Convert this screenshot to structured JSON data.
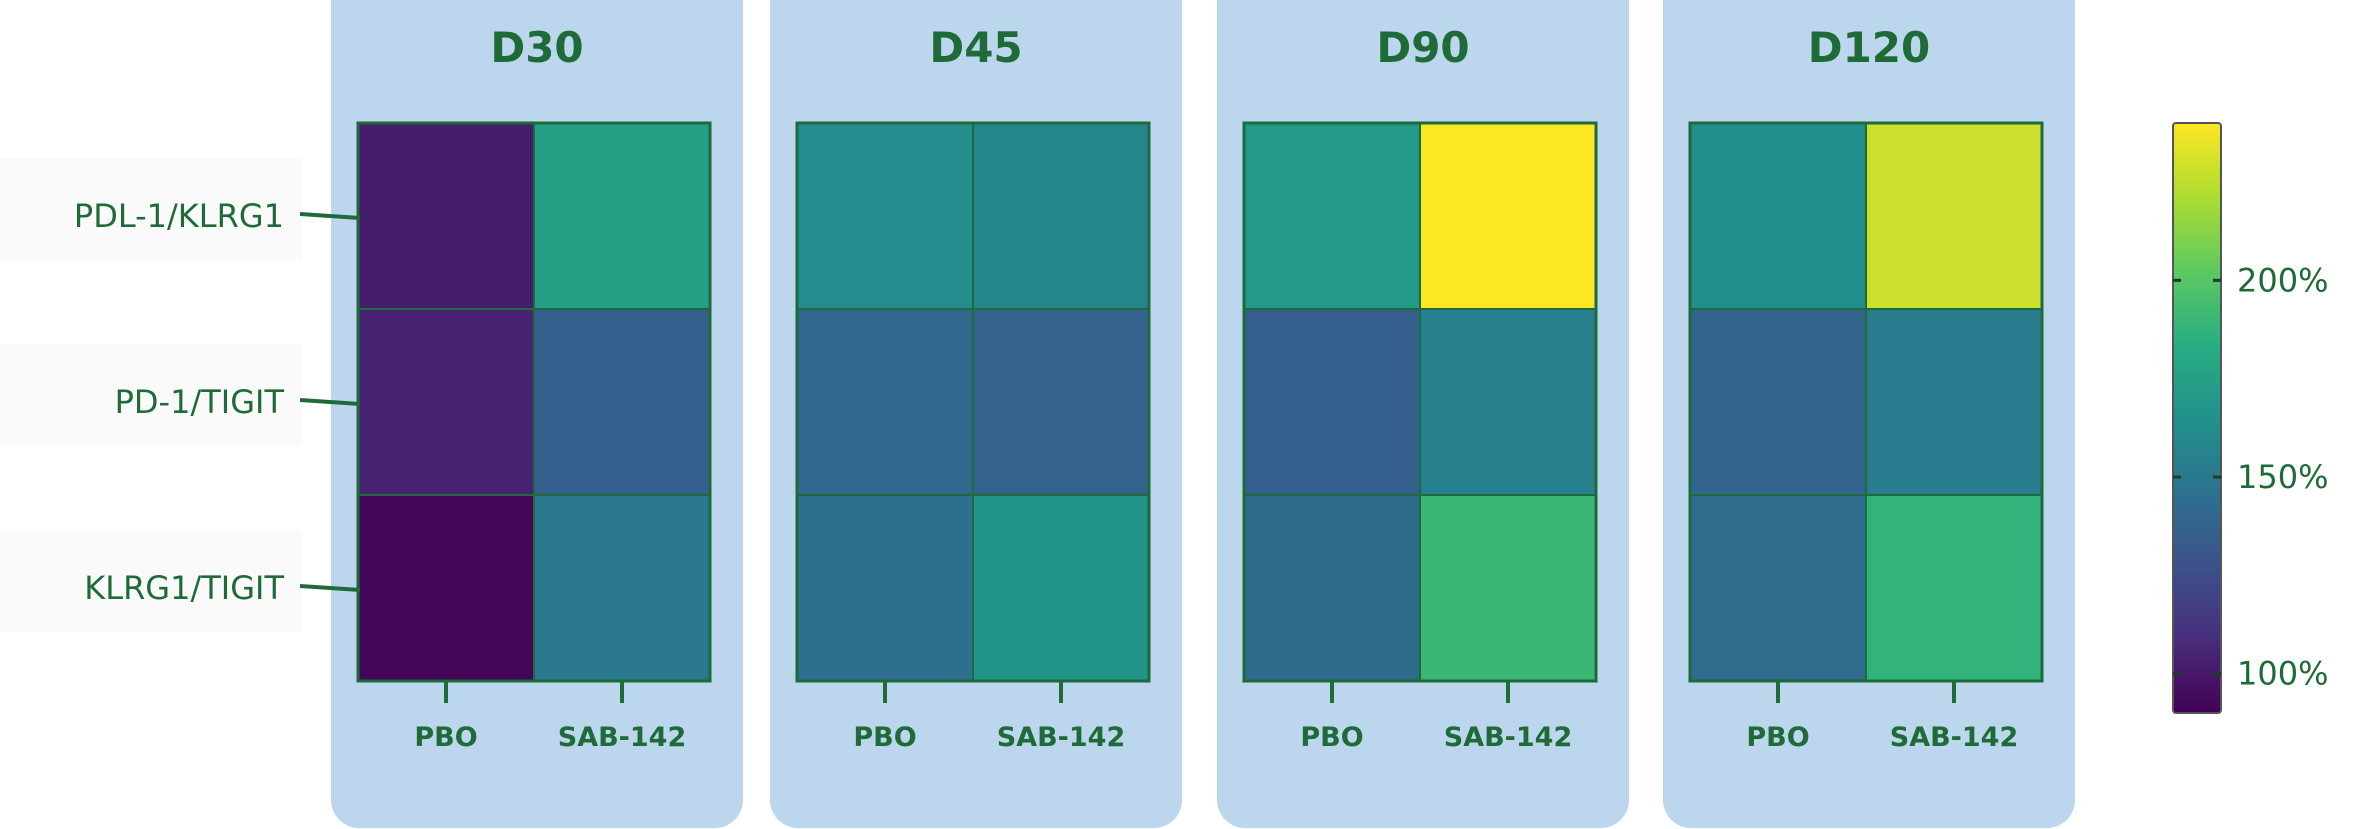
{
  "chart_data": {
    "type": "heatmap",
    "colorscale": "viridis",
    "text_color": "#1e6b37",
    "panel_color": "#bcd6ee",
    "rows": [
      "PDL-1/KLRG1",
      "PD-1/TIGIT",
      "KLRG1/TIGIT"
    ],
    "columns": [
      "PBO",
      "SAB-142"
    ],
    "colorbar": {
      "min": 90,
      "max": 240,
      "ticks": [
        100,
        150,
        200
      ],
      "tick_labels": [
        "100%",
        "150%",
        "200%"
      ]
    },
    "panels": [
      {
        "title": "D30",
        "values": [
          [
            102,
            175
          ],
          [
            104,
            135
          ],
          [
            92,
            150
          ]
        ]
      },
      {
        "title": "D45",
        "values": [
          [
            162,
            158
          ],
          [
            140,
            137
          ],
          [
            144,
            167
          ]
        ]
      },
      {
        "title": "D90",
        "values": [
          [
            170,
            240
          ],
          [
            135,
            155
          ],
          [
            142,
            190
          ]
        ]
      },
      {
        "title": "D120",
        "values": [
          [
            164,
            228
          ],
          [
            138,
            152
          ],
          [
            143,
            187
          ]
        ]
      }
    ]
  }
}
